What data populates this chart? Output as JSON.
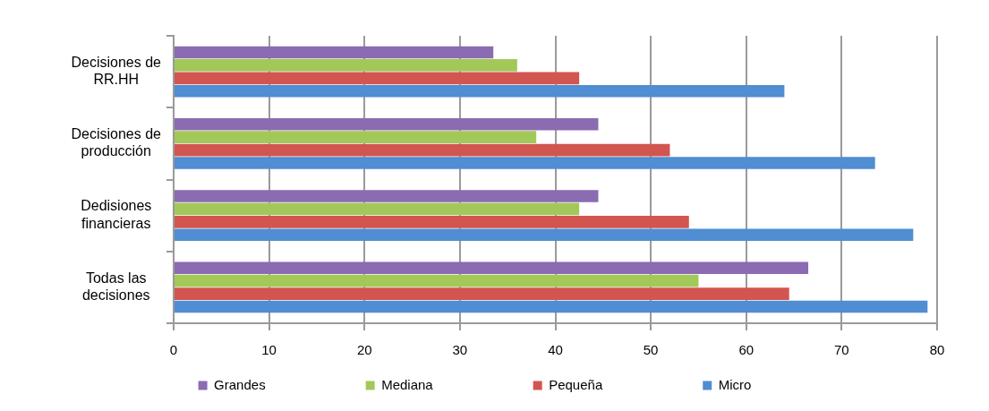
{
  "chart_data": {
    "type": "bar",
    "orientation": "horizontal",
    "categories": [
      "Decisiones de RR.HH",
      "Decisiones de producción",
      "Dedisiones financieras",
      "Todas las decisiones"
    ],
    "series": [
      {
        "name": "Grandes",
        "color": "#8b6bb1",
        "values": [
          33.5,
          44.5,
          44.5,
          66.5
        ]
      },
      {
        "name": "Mediana",
        "color": "#a3c85a",
        "values": [
          36,
          38,
          42.5,
          55
        ]
      },
      {
        "name": "Pequeña",
        "color": "#d25550",
        "values": [
          42.5,
          52,
          54,
          64.5
        ]
      },
      {
        "name": "Micro",
        "color": "#508dd2",
        "values": [
          64,
          73.5,
          77.5,
          79
        ]
      }
    ],
    "xlim": [
      0,
      80
    ],
    "xticks": [
      0,
      10,
      20,
      30,
      40,
      50,
      60,
      70,
      80
    ],
    "grid": "x",
    "legend": "bottom"
  }
}
